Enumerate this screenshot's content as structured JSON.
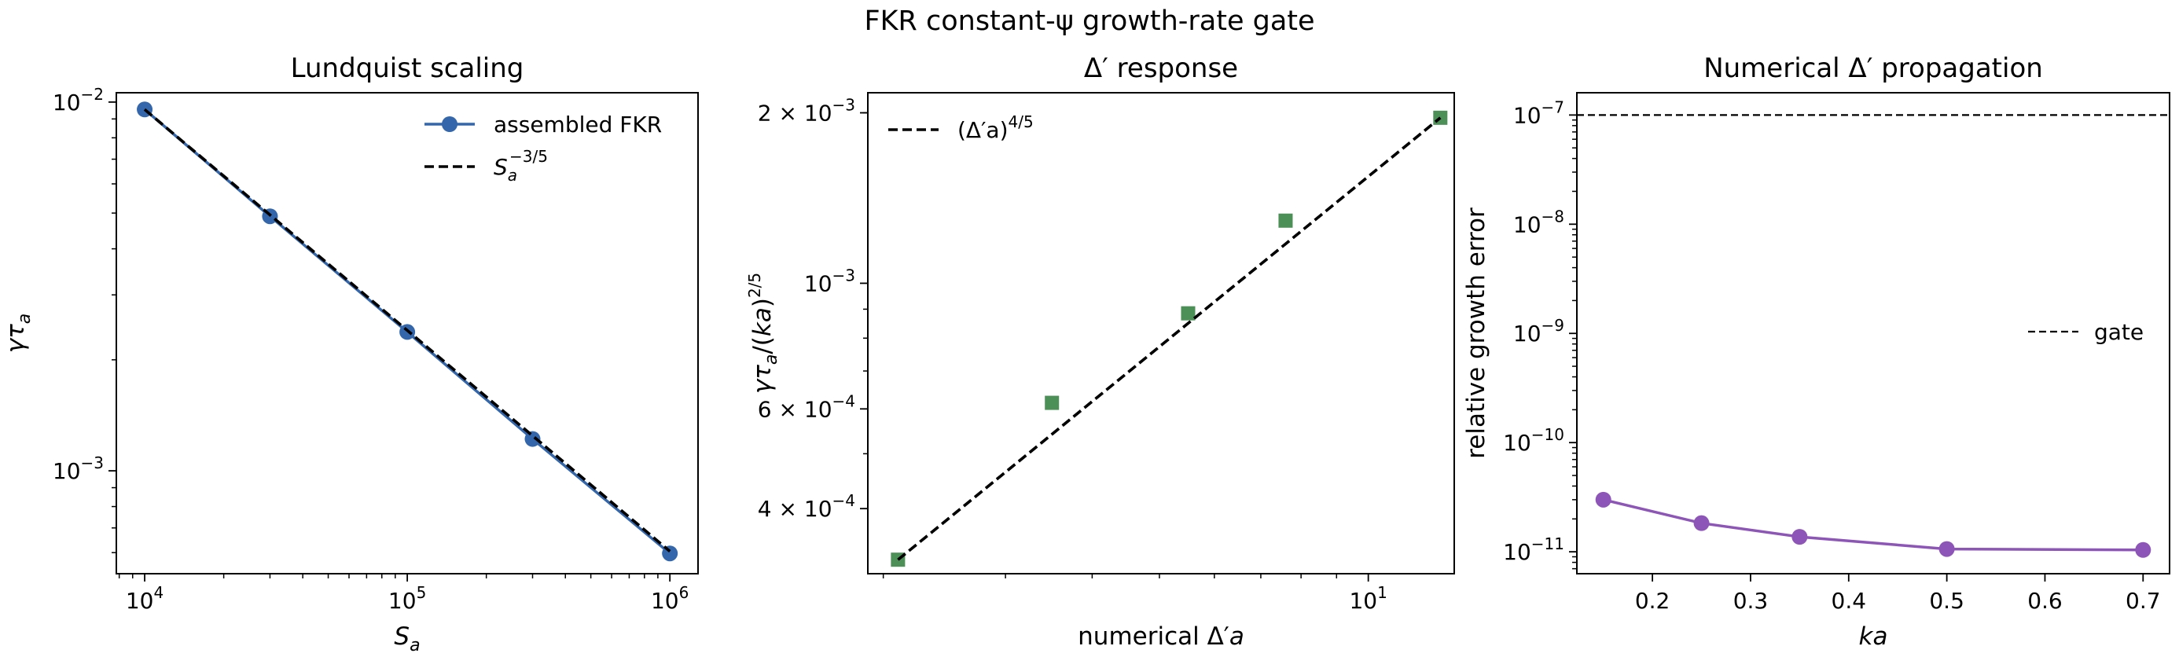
{
  "figure": {
    "suptitle": "FKR constant-ψ growth-rate gate"
  },
  "chart_data": [
    {
      "type": "line",
      "title": "Lundquist scaling",
      "xlabel": "S_a",
      "ylabel": "γτ_a",
      "xscale": "log",
      "yscale": "log",
      "xlim": [
        7800,
        1280000
      ],
      "ylim": [
        0.000526,
        0.0106
      ],
      "x_ticks": [
        {
          "value": 10000,
          "mantissa": "",
          "base": "10",
          "exp": "4"
        },
        {
          "value": 100000,
          "mantissa": "",
          "base": "10",
          "exp": "5"
        },
        {
          "value": 1000000,
          "mantissa": "",
          "base": "10",
          "exp": "6"
        }
      ],
      "y_ticks": [
        {
          "value": 0.001,
          "mantissa": "",
          "base": "10",
          "exp": "−3"
        },
        {
          "value": 0.01,
          "mantissa": "",
          "base": "10",
          "exp": "−2"
        }
      ],
      "series": [
        {
          "name": "assembled FKR",
          "style": "line-marker",
          "marker": "circle",
          "color": "#3366aa",
          "x": [
            10000,
            30000,
            100000,
            300000,
            1000000
          ],
          "y": [
            0.00955,
            0.0049,
            0.00238,
            0.00122,
            0.000597
          ]
        },
        {
          "name": "S_a^{−3/5}",
          "style": "dashed",
          "color": "#000000",
          "x": [
            10000,
            1000000
          ],
          "y": [
            0.00955,
            0.000605
          ]
        }
      ],
      "legend": {
        "position": "top-right",
        "entries": [
          {
            "label": "assembled FKR"
          },
          {
            "label_base": "S",
            "label_sub": "a",
            "label_sup": "−3/5"
          }
        ]
      },
      "grid": false
    },
    {
      "type": "line",
      "title": "Δ′ response",
      "xlabel": "numerical Δ′a",
      "ylabel": "γτ_a/(ka)^{2/5}",
      "xscale": "log",
      "yscale": "log",
      "xlim": [
        1.9,
        13.3
      ],
      "ylim": [
        0.000307,
        0.00217
      ],
      "x_ticks": [
        {
          "value": 10,
          "mantissa": "",
          "base": "10",
          "exp": "1"
        }
      ],
      "y_ticks": [
        {
          "value": 0.0004,
          "mantissa": "4 × ",
          "base": "10",
          "exp": "−4"
        },
        {
          "value": 0.0006,
          "mantissa": "6 × ",
          "base": "10",
          "exp": "−4"
        },
        {
          "value": 0.001,
          "mantissa": "",
          "base": "10",
          "exp": "−3"
        },
        {
          "value": 0.002,
          "mantissa": "2 × ",
          "base": "10",
          "exp": "−3"
        }
      ],
      "series": [
        {
          "name": "",
          "style": "marker",
          "marker": "square",
          "color": "#4c8f57",
          "x": [
            2.1,
            3.5,
            5.5,
            7.6,
            12.7
          ],
          "y": [
            0.000325,
            0.000615,
            0.000885,
            0.00129,
            0.00196
          ]
        },
        {
          "name": "(Δ′a)^{4/5}",
          "style": "dashed",
          "color": "#000000",
          "x": [
            2.1,
            12.7
          ],
          "y": [
            0.000325,
            0.00196
          ]
        }
      ],
      "legend": {
        "position": "top-left",
        "entries": [
          {
            "label_base": "(Δ′a)",
            "label_sub": "",
            "label_sup": "4/5"
          }
        ]
      },
      "grid": false
    },
    {
      "type": "line",
      "title": "Numerical Δ′ propagation",
      "xlabel": "ka",
      "ylabel": "relative growth error",
      "xscale": "linear",
      "yscale": "log",
      "xlim": [
        0.123,
        0.727
      ],
      "ylim": [
        6.3e-12,
        1.6e-07
      ],
      "x_ticks": [
        {
          "value": 0.2,
          "label": "0.2"
        },
        {
          "value": 0.3,
          "label": "0.3"
        },
        {
          "value": 0.4,
          "label": "0.4"
        },
        {
          "value": 0.5,
          "label": "0.5"
        },
        {
          "value": 0.6,
          "label": "0.6"
        },
        {
          "value": 0.7,
          "label": "0.7"
        }
      ],
      "y_ticks": [
        {
          "value": 1e-11,
          "mantissa": "",
          "base": "10",
          "exp": "−11"
        },
        {
          "value": 1e-10,
          "mantissa": "",
          "base": "10",
          "exp": "−10"
        },
        {
          "value": 1e-09,
          "mantissa": "",
          "base": "10",
          "exp": "−9"
        },
        {
          "value": 1e-08,
          "mantissa": "",
          "base": "10",
          "exp": "−8"
        },
        {
          "value": 1e-07,
          "mantissa": "",
          "base": "10",
          "exp": "−7"
        }
      ],
      "series": [
        {
          "name": "",
          "style": "line-marker",
          "marker": "circle",
          "color": "#8e55b8",
          "x": [
            0.15,
            0.25,
            0.35,
            0.5,
            0.7
          ],
          "y": [
            3e-11,
            1.83e-11,
            1.37e-11,
            1.06e-11,
            1.04e-11
          ]
        }
      ],
      "hlines": [
        {
          "name": "gate",
          "y": 1e-07,
          "style": "dashed",
          "color": "#000000"
        }
      ],
      "legend": {
        "position": "center-right",
        "entries": [
          {
            "label": "gate"
          }
        ]
      },
      "grid": false
    }
  ]
}
